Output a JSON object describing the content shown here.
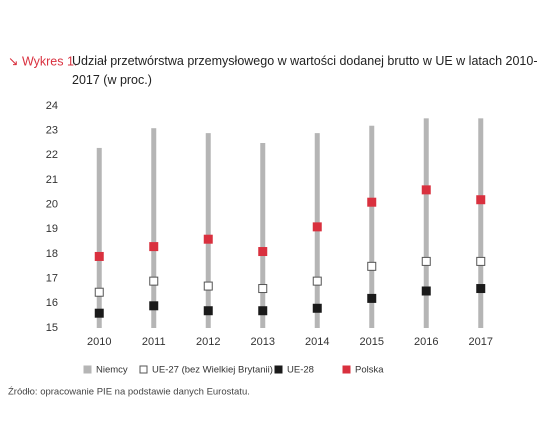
{
  "chart_data": {
    "type": "bar",
    "label": "↘ Wykres 1.",
    "title": "Udział przetwórstwa przemysłowego w wartości dodanej brutto w UE w latach 2010-2017 (w proc.)",
    "source": "Źródło: opracowanie PIE na podstawie danych Eurostatu.",
    "categories": [
      "2010",
      "2011",
      "2012",
      "2013",
      "2014",
      "2015",
      "2016",
      "2017"
    ],
    "series": [
      {
        "name": "Niemcy",
        "color": "#b5b5b5",
        "marker": "bar",
        "values": [
          22.3,
          23.1,
          22.9,
          22.5,
          22.9,
          23.2,
          23.5,
          23.5
        ]
      },
      {
        "name": "UE-27 (bez Wielkiej Brytanii)",
        "color": "#ffffff",
        "marker": "square",
        "values": [
          16.45,
          16.9,
          16.7,
          16.6,
          16.9,
          17.5,
          17.7,
          17.7
        ]
      },
      {
        "name": "UE-28",
        "color": "#1a1a1a",
        "marker": "square",
        "values": [
          15.6,
          15.9,
          15.7,
          15.7,
          15.8,
          16.2,
          16.5,
          16.6
        ]
      },
      {
        "name": "Polska",
        "color": "#d9303e",
        "marker": "square",
        "values": [
          17.9,
          18.3,
          18.6,
          18.1,
          19.1,
          20.1,
          20.6,
          20.2
        ]
      }
    ],
    "ylim": [
      15,
      24
    ],
    "yticks": [
      15,
      16,
      17,
      18,
      19,
      20,
      21,
      22,
      23,
      24
    ],
    "grid": false
  }
}
